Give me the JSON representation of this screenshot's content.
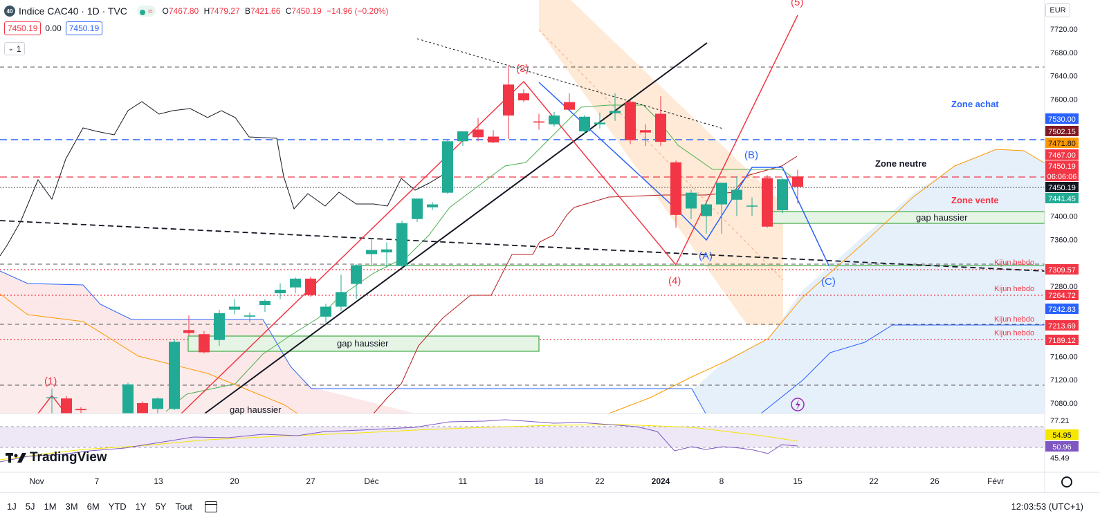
{
  "header": {
    "symbol_icon": "40",
    "title": "Indice CAC40 · 1D · TVC",
    "status_icon": "wave-icon",
    "ohlc": [
      {
        "k": "O",
        "v": "7467.80"
      },
      {
        "k": "H",
        "v": "7479.27"
      },
      {
        "k": "B",
        "v": "7421.66"
      },
      {
        "k": "C",
        "v": "7450.19"
      }
    ],
    "change": "−14.96 (−0.20%)"
  },
  "quote": {
    "bid": "7450.19",
    "spread": "0.00",
    "ask": "7450.19"
  },
  "layers_count": "1",
  "currency": "EUR",
  "axis": {
    "y_ticks": [
      "7720.00",
      "7680.00",
      "7640.00",
      "7600.00",
      "7400.00",
      "7360.00",
      "7280.00",
      "7160.00",
      "7120.00",
      "7080.00"
    ],
    "x_ticks": [
      "Nov",
      "7",
      "13",
      "20",
      "27",
      "Déc",
      "11",
      "18",
      "22",
      "2024",
      "8",
      "15",
      "22",
      "26",
      "Févr"
    ],
    "rsi_ticks": [
      "77.21",
      "45.49"
    ]
  },
  "price_labels": [
    {
      "text": "7530.00",
      "color": "#2962ff"
    },
    {
      "text": "7502.15",
      "color": "#801922"
    },
    {
      "text": "7471.80",
      "color": "#ff9800"
    },
    {
      "text": "7467.00",
      "color": "#f23645"
    },
    {
      "text": "7450.19",
      "color": "#f23645"
    },
    {
      "text": "06:06:06",
      "color": "#f23645"
    },
    {
      "text": "7450.19",
      "color": "#131722"
    },
    {
      "text": "7441.45",
      "color": "#22ab94"
    },
    {
      "text": "7309.57",
      "color": "#f23645"
    },
    {
      "text": "7264.72",
      "color": "#f23645"
    },
    {
      "text": "7242.83",
      "color": "#2962ff"
    },
    {
      "text": "7213.69",
      "color": "#f23645"
    },
    {
      "text": "7189.12",
      "color": "#f23645"
    },
    {
      "text": "54.95",
      "color": "#f7e600"
    },
    {
      "text": "50.96",
      "color": "#7e57c2"
    }
  ],
  "annotations": {
    "zone_achat": "Zone achat",
    "zone_neutre": "Zone neutre",
    "zone_vente": "Zone vente",
    "gap": "gap haussier",
    "kijun": "Kijun hebdo",
    "waves": [
      "(1)",
      "(3)",
      "(4)",
      "(5)",
      "(A)",
      "(B)",
      "(C)"
    ]
  },
  "ranges": [
    "1J",
    "5J",
    "1M",
    "3M",
    "6M",
    "YTD",
    "1Y",
    "5Y",
    "Tout"
  ],
  "clock": "12:03:53 (UTC+1)",
  "brand": "TradingView",
  "colors": {
    "up": "#22ab94",
    "down": "#f23645",
    "accent": "#2962ff"
  },
  "chart_data": {
    "type": "candlestick",
    "title": "Indice CAC40 · 1D · TVC",
    "ylim": [
      7060,
      7740
    ],
    "candles": [
      {
        "x": 75,
        "o": 7090,
        "h": 7105,
        "l": 7060,
        "c": 7090
      },
      {
        "x": 96,
        "o": 7088,
        "h": 7092,
        "l": 7060,
        "c": 7062
      },
      {
        "x": 117,
        "o": 7070,
        "h": 7073,
        "l": 7060,
        "c": 7068
      },
      {
        "x": 185,
        "o": 7062,
        "h": 7115,
        "l": 7060,
        "c": 7112
      },
      {
        "x": 206,
        "o": 7080,
        "h": 7083,
        "l": 7060,
        "c": 7063
      },
      {
        "x": 228,
        "o": 7070,
        "h": 7090,
        "l": 7060,
        "c": 7088
      },
      {
        "x": 252,
        "o": 7070,
        "h": 7190,
        "l": 7068,
        "c": 7185
      },
      {
        "x": 273,
        "o": 7205,
        "h": 7230,
        "l": 7195,
        "c": 7200
      },
      {
        "x": 295,
        "o": 7198,
        "h": 7203,
        "l": 7165,
        "c": 7167
      },
      {
        "x": 317,
        "o": 7188,
        "h": 7240,
        "l": 7178,
        "c": 7234
      },
      {
        "x": 339,
        "o": 7240,
        "h": 7258,
        "l": 7232,
        "c": 7245
      },
      {
        "x": 361,
        "o": 7228,
        "h": 7235,
        "l": 7218,
        "c": 7230
      },
      {
        "x": 383,
        "o": 7248,
        "h": 7258,
        "l": 7236,
        "c": 7255
      },
      {
        "x": 405,
        "o": 7268,
        "h": 7285,
        "l": 7258,
        "c": 7274
      },
      {
        "x": 427,
        "o": 7278,
        "h": 7295,
        "l": 7268,
        "c": 7293
      },
      {
        "x": 449,
        "o": 7293,
        "h": 7296,
        "l": 7262,
        "c": 7265
      },
      {
        "x": 471,
        "o": 7228,
        "h": 7250,
        "l": 7218,
        "c": 7245
      },
      {
        "x": 493,
        "o": 7245,
        "h": 7300,
        "l": 7238,
        "c": 7270
      },
      {
        "x": 515,
        "o": 7284,
        "h": 7318,
        "l": 7258,
        "c": 7316
      },
      {
        "x": 537,
        "o": 7335,
        "h": 7362,
        "l": 7316,
        "c": 7342
      },
      {
        "x": 559,
        "o": 7338,
        "h": 7355,
        "l": 7312,
        "c": 7343
      },
      {
        "x": 581,
        "o": 7315,
        "h": 7392,
        "l": 7312,
        "c": 7388
      },
      {
        "x": 603,
        "o": 7395,
        "h": 7430,
        "l": 7390,
        "c": 7430
      },
      {
        "x": 625,
        "o": 7415,
        "h": 7424,
        "l": 7410,
        "c": 7420
      },
      {
        "x": 647,
        "o": 7440,
        "h": 7530,
        "l": 7438,
        "c": 7528
      },
      {
        "x": 669,
        "o": 7528,
        "h": 7545,
        "l": 7520,
        "c": 7545
      },
      {
        "x": 691,
        "o": 7548,
        "h": 7568,
        "l": 7528,
        "c": 7535
      },
      {
        "x": 713,
        "o": 7536,
        "h": 7547,
        "l": 7525,
        "c": 7526
      },
      {
        "x": 735,
        "o": 7625,
        "h": 7658,
        "l": 7532,
        "c": 7572
      },
      {
        "x": 757,
        "o": 7610,
        "h": 7617,
        "l": 7595,
        "c": 7598
      },
      {
        "x": 779,
        "o": 7562,
        "h": 7575,
        "l": 7548,
        "c": 7560
      },
      {
        "x": 801,
        "o": 7557,
        "h": 7578,
        "l": 7553,
        "c": 7572
      },
      {
        "x": 823,
        "o": 7595,
        "h": 7610,
        "l": 7580,
        "c": 7582
      },
      {
        "x": 845,
        "o": 7545,
        "h": 7573,
        "l": 7540,
        "c": 7570
      },
      {
        "x": 867,
        "o": 7557,
        "h": 7577,
        "l": 7550,
        "c": 7560
      },
      {
        "x": 889,
        "o": 7576,
        "h": 7610,
        "l": 7563,
        "c": 7580
      },
      {
        "x": 911,
        "o": 7595,
        "h": 7598,
        "l": 7523,
        "c": 7530
      },
      {
        "x": 933,
        "o": 7547,
        "h": 7557,
        "l": 7520,
        "c": 7543
      },
      {
        "x": 955,
        "o": 7575,
        "h": 7605,
        "l": 7520,
        "c": 7527
      },
      {
        "x": 977,
        "o": 7492,
        "h": 7495,
        "l": 7380,
        "c": 7402
      },
      {
        "x": 999,
        "o": 7413,
        "h": 7445,
        "l": 7395,
        "c": 7440
      },
      {
        "x": 1021,
        "o": 7400,
        "h": 7425,
        "l": 7370,
        "c": 7420
      },
      {
        "x": 1043,
        "o": 7420,
        "h": 7457,
        "l": 7370,
        "c": 7457
      },
      {
        "x": 1065,
        "o": 7428,
        "h": 7468,
        "l": 7400,
        "c": 7445
      },
      {
        "x": 1087,
        "o": 7418,
        "h": 7432,
        "l": 7400,
        "c": 7418
      },
      {
        "x": 1109,
        "o": 7465,
        "h": 7470,
        "l": 7380,
        "c": 7382
      },
      {
        "x": 1131,
        "o": 7410,
        "h": 7465,
        "l": 7405,
        "c": 7463
      },
      {
        "x": 1153,
        "o": 7467.8,
        "h": 7479.27,
        "l": 7421.66,
        "c": 7450.19
      }
    ],
    "rsi_series": [
      {
        "name": "RSI",
        "values": [
          50.96
        ]
      },
      {
        "name": "RSI MA",
        "values": [
          54.95
        ]
      }
    ]
  }
}
